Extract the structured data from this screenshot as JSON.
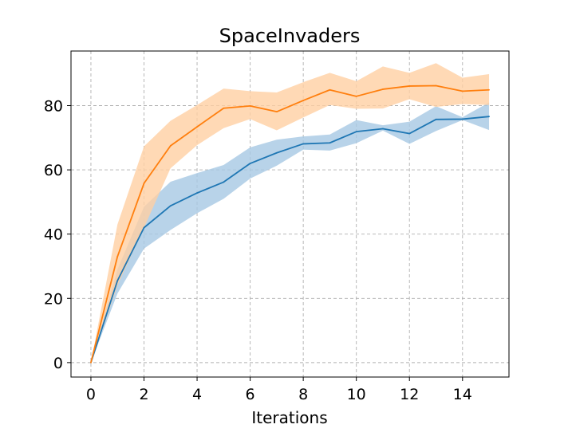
{
  "chart_data": {
    "type": "line",
    "title": "SpaceInvaders",
    "xlabel": "Iterations",
    "ylabel": "",
    "xlim": [
      -0.75,
      15.75
    ],
    "ylim": [
      -4.5,
      97
    ],
    "xticks": [
      0,
      2,
      4,
      6,
      8,
      10,
      12,
      14
    ],
    "yticks": [
      0,
      20,
      40,
      60,
      80
    ],
    "grid": true,
    "series": [
      {
        "color": "#1f77b4",
        "band_color": "#a6c8e4",
        "x": [
          0,
          1,
          2,
          3,
          4,
          5,
          6,
          7,
          8,
          9,
          10,
          11,
          12,
          13,
          14,
          15
        ],
        "values": [
          0,
          25.5,
          42,
          48.8,
          52.8,
          56.2,
          62,
          65.3,
          68.1,
          68.4,
          71.9,
          72.8,
          71.3,
          75.7,
          75.8,
          76.6
        ],
        "upper": [
          0,
          29,
          48.5,
          56.3,
          59,
          61.5,
          67,
          69.4,
          70.4,
          71,
          75.5,
          73.9,
          75,
          79.8,
          76.4,
          81
        ],
        "lower": [
          0,
          21.5,
          35.5,
          41.3,
          46.5,
          51,
          57.3,
          61.3,
          66.3,
          66,
          68.3,
          72.2,
          68.1,
          72.1,
          75.5,
          72.4
        ]
      },
      {
        "color": "#ff7f0e",
        "band_color": "#ffcfa2",
        "x": [
          0,
          1,
          2,
          3,
          4,
          5,
          6,
          7,
          8,
          9,
          10,
          11,
          12,
          13,
          14,
          15
        ],
        "values": [
          0,
          33,
          55.8,
          67.5,
          73.4,
          79.2,
          79.9,
          78.1,
          81.6,
          84.9,
          82.9,
          85.1,
          86.1,
          86.2,
          84.5,
          84.9
        ],
        "upper": [
          0,
          43,
          67.3,
          75.3,
          80.2,
          85.3,
          84.5,
          84.1,
          87.3,
          90.2,
          87.6,
          92.2,
          90.2,
          93.2,
          88.7,
          89.8
        ],
        "lower": [
          0,
          24,
          42,
          60.5,
          67.7,
          73,
          75.8,
          72.3,
          76.3,
          80.2,
          79,
          79.1,
          82,
          79.6,
          80.5,
          80.2
        ]
      }
    ]
  }
}
